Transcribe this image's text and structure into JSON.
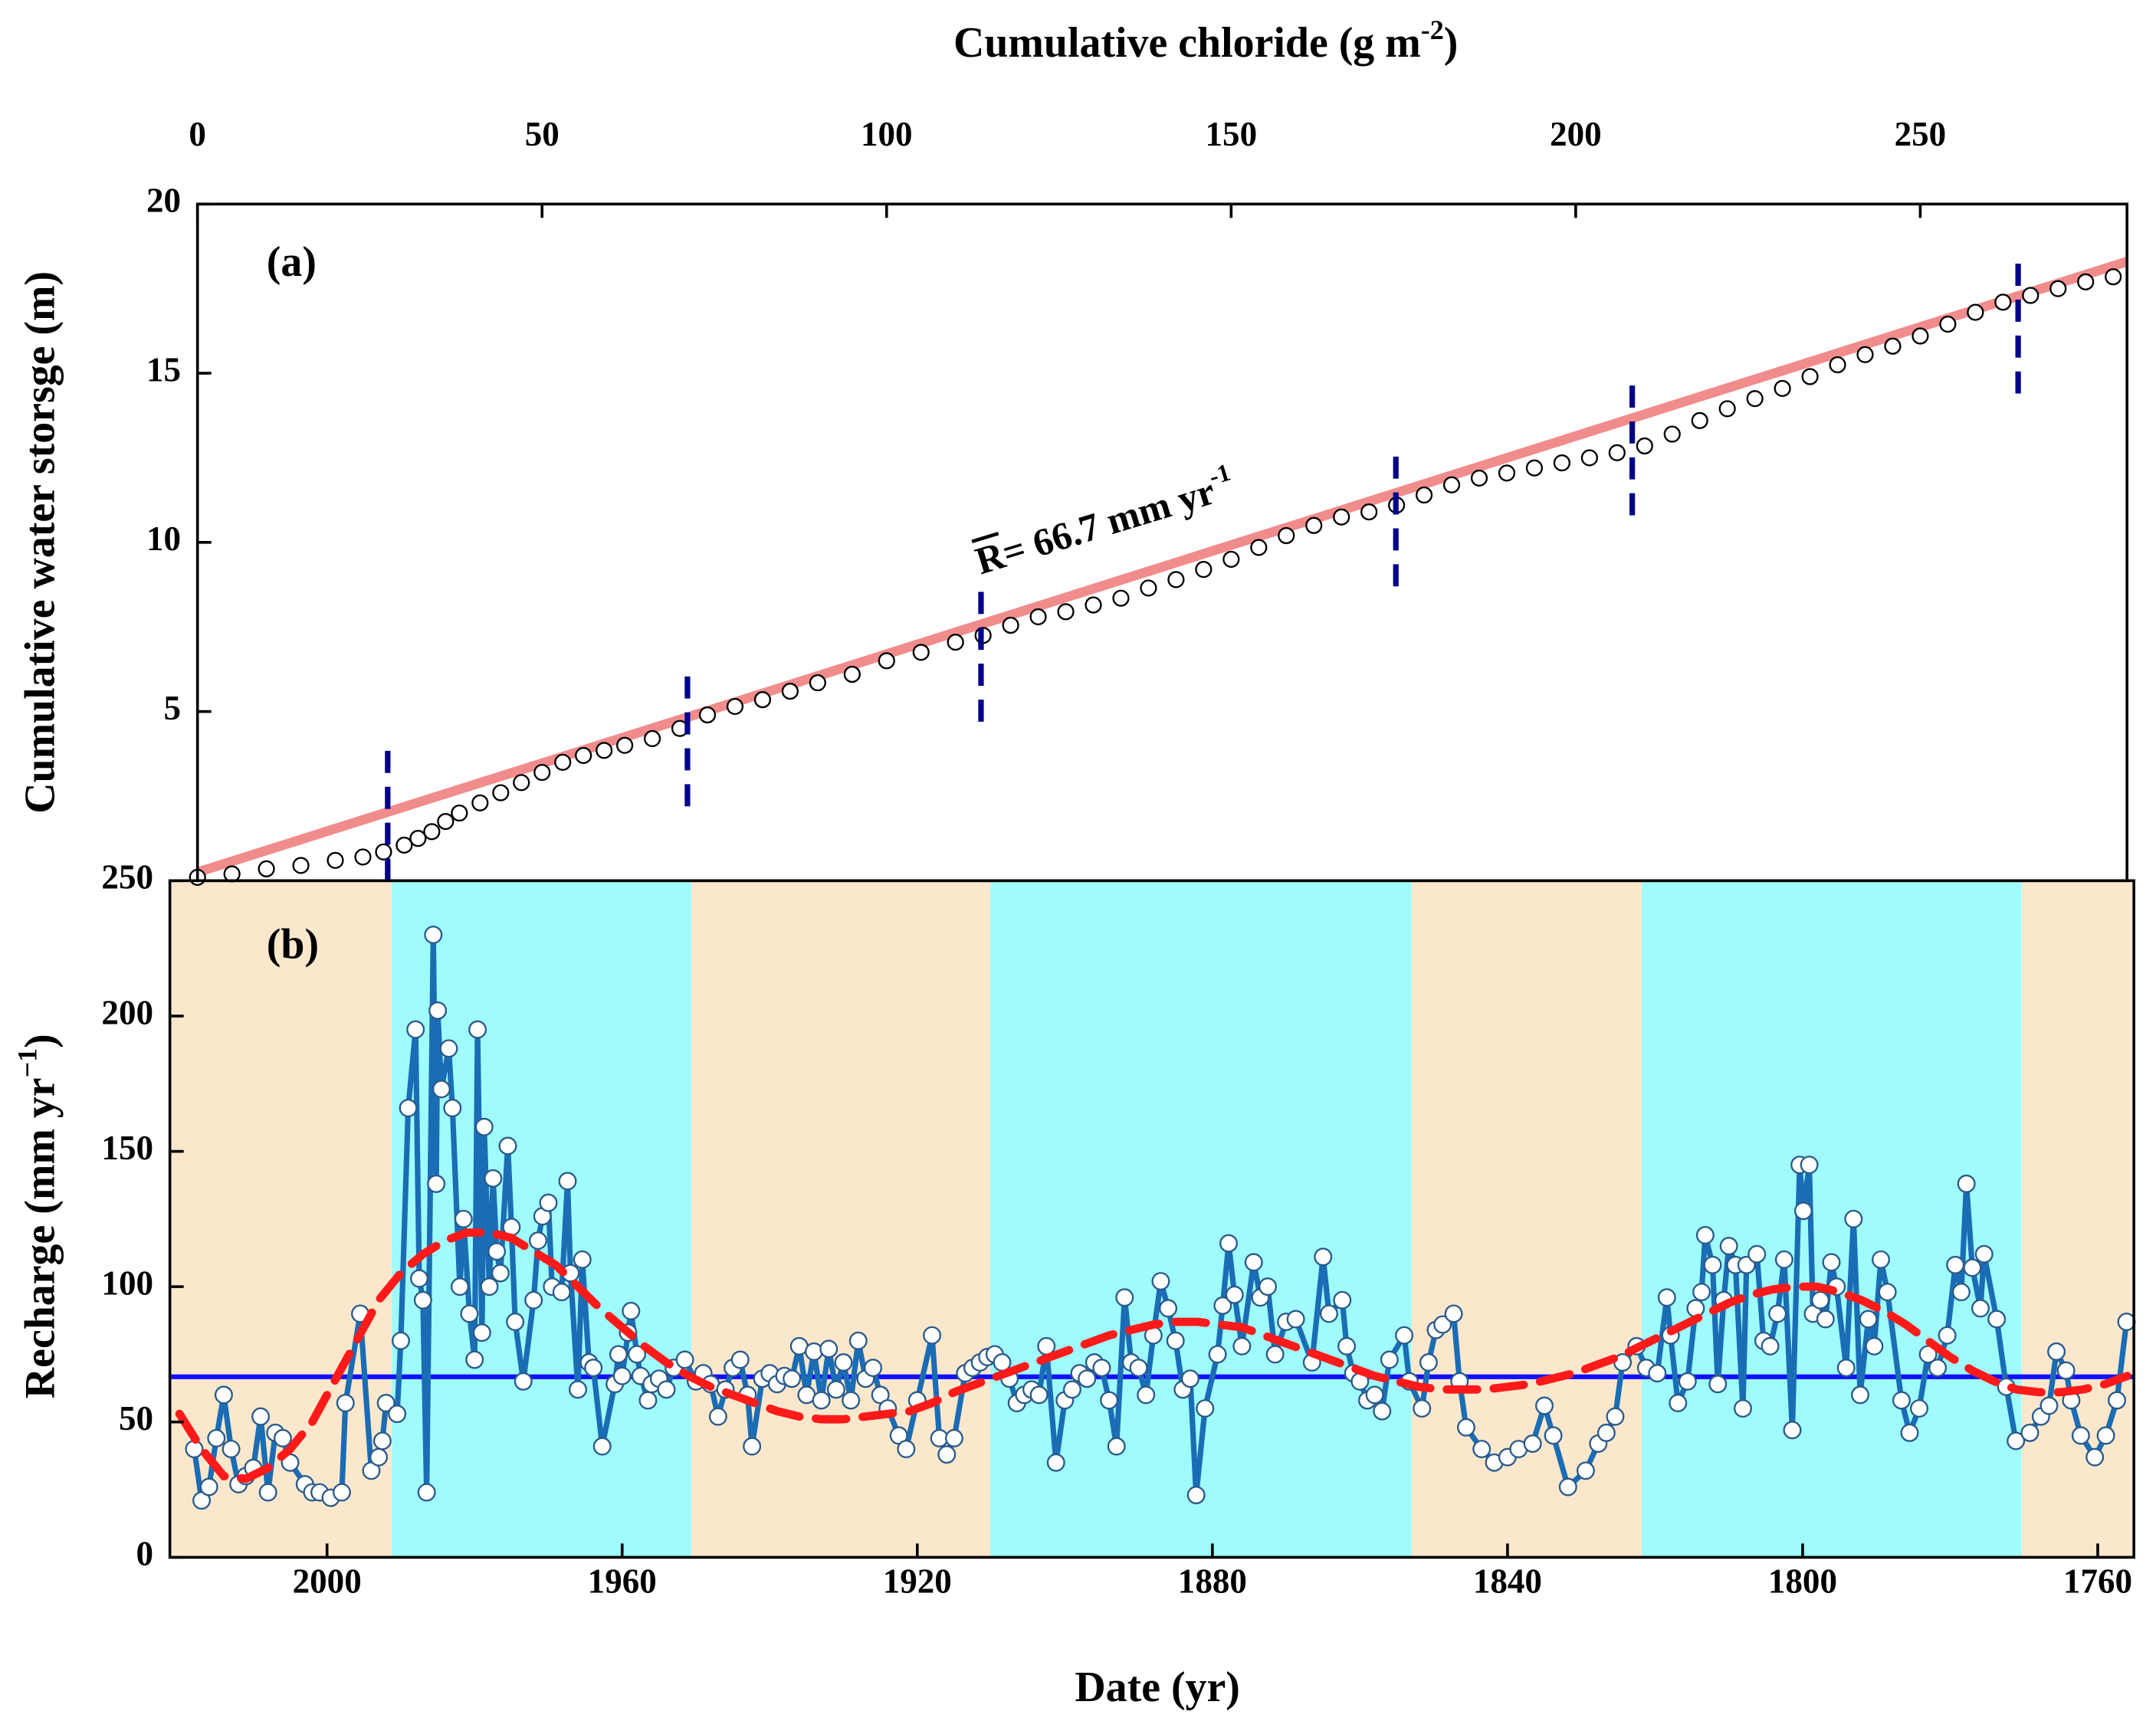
{
  "chart_data": [
    {
      "type": "scatter",
      "panel": "(a)",
      "xlabel": [
        "Cumulative chloride (g m",
        "-2",
        ")"
      ],
      "ylabel": "Cumulative water storsge (m)",
      "xlim": [
        0,
        280
      ],
      "xticks": [
        0,
        50,
        100,
        150,
        200,
        250
      ],
      "ylim": [
        0,
        20
      ],
      "yticks": [
        5,
        10,
        15,
        20
      ],
      "series": [
        {
          "color": "#000000",
          "marker": "circle",
          "x": [
            0,
            5,
            10,
            15,
            20,
            24,
            27,
            30,
            32,
            34,
            36,
            38,
            41,
            44,
            47,
            50,
            53,
            56,
            59,
            62,
            66,
            70,
            74,
            78,
            82,
            86,
            90,
            95,
            100,
            105,
            110,
            114,
            118,
            122,
            126,
            130,
            134,
            138,
            142,
            146,
            150,
            154,
            158,
            162,
            166,
            170,
            174,
            178,
            182,
            186,
            190,
            194,
            198,
            202,
            206,
            210,
            214,
            218,
            222,
            226,
            230,
            234,
            238,
            242,
            246,
            250,
            254,
            258,
            262,
            266,
            270,
            274,
            278
          ],
          "values": [
            0.1,
            0.2,
            0.35,
            0.45,
            0.6,
            0.7,
            0.85,
            1.05,
            1.25,
            1.45,
            1.75,
            2.0,
            2.3,
            2.6,
            2.9,
            3.2,
            3.5,
            3.7,
            3.85,
            4.0,
            4.2,
            4.5,
            4.9,
            5.15,
            5.35,
            5.6,
            5.85,
            6.1,
            6.5,
            6.75,
            7.05,
            7.25,
            7.55,
            7.8,
            7.95,
            8.15,
            8.35,
            8.65,
            8.9,
            9.2,
            9.5,
            9.85,
            10.2,
            10.5,
            10.75,
            10.9,
            11.1,
            11.4,
            11.7,
            11.9,
            12.05,
            12.2,
            12.35,
            12.5,
            12.65,
            12.85,
            13.2,
            13.6,
            13.95,
            14.25,
            14.55,
            14.9,
            15.25,
            15.55,
            15.8,
            16.1,
            16.45,
            16.8,
            17.1,
            17.3,
            17.5,
            17.7,
            17.85
          ]
        },
        {
          "color": "#f08080",
          "marker": "line",
          "x": [
            0,
            280
          ],
          "values": [
            0.25,
            18.3
          ]
        }
      ],
      "annotation": [
        "R",
        "= 66.7  mm yr",
        "-1"
      ],
      "markers_color": "#00008b",
      "markers": [
        {
          "x": 27.6,
          "y": [
            0,
            4.1
          ]
        },
        {
          "x": 71.1,
          "y": [
            2.2,
            6.3
          ]
        },
        {
          "x": 113.7,
          "y": [
            4.7,
            8.8
          ]
        },
        {
          "x": 173.9,
          "y": [
            8.7,
            12.8
          ]
        },
        {
          "x": 208.2,
          "y": [
            10.8,
            14.9
          ]
        },
        {
          "x": 264.2,
          "y": [
            14.4,
            18.6
          ]
        }
      ]
    },
    {
      "type": "line",
      "panel": "(b)",
      "xlabel": "Date (yr)",
      "ylabel": [
        "Recharge (mm yr",
        "−1",
        ")"
      ],
      "xlim": [
        2021.3,
        1755.1
      ],
      "xticks": [
        2000,
        1960,
        1920,
        1880,
        1840,
        1800,
        1760
      ],
      "ylim": [
        0,
        250
      ],
      "yticks": [
        0,
        50,
        100,
        150,
        200,
        250
      ],
      "color": "#1a6db5",
      "marker_fill": "#ffffff",
      "marker_stroke": "#2a5a8a",
      "periods": [
        {
          "start": 2021.3,
          "end": 1991.2,
          "color": "#fbe8cc"
        },
        {
          "start": 1991.2,
          "end": 1950.6,
          "color": "#a0fcfc"
        },
        {
          "start": 1950.6,
          "end": 1910.1,
          "color": "#fbe8cc"
        },
        {
          "start": 1910.1,
          "end": 1853,
          "color": "#a0fcfc"
        },
        {
          "start": 1853,
          "end": 1821.8,
          "color": "#fbe8cc"
        },
        {
          "start": 1821.8,
          "end": 1770.3,
          "color": "#a0fcfc"
        },
        {
          "start": 1770.3,
          "end": 1755.1,
          "color": "#fbe8cc"
        }
      ],
      "mean": 66.7,
      "mean_color": "#1010ff",
      "x": [
        2018,
        2017,
        2016,
        2015,
        2014,
        2013,
        2012,
        2011,
        2010,
        2009,
        2008,
        2007,
        2006,
        2005,
        2003,
        2002,
        2001,
        1999.5,
        1998,
        1997.5,
        1995.5,
        1994,
        1993,
        1992.5,
        1992,
        1990.5,
        1990,
        1989,
        1988,
        1987.5,
        1987,
        1986.5,
        1985.6,
        1985.2,
        1985,
        1984.5,
        1983.5,
        1983,
        1982,
        1981.5,
        1980.7,
        1980,
        1979.6,
        1979,
        1978.7,
        1978,
        1977.5,
        1977,
        1976.5,
        1975.5,
        1975,
        1974.5,
        1973.4,
        1972,
        1971.4,
        1970.8,
        1970,
        1969.5,
        1968.2,
        1967.4,
        1967,
        1966,
        1965.4,
        1964.5,
        1963.9,
        1962.7,
        1961,
        1960.5,
        1960,
        1959.2,
        1958.8,
        1958,
        1957.5,
        1956.5,
        1956,
        1955,
        1954,
        1953,
        1951.5,
        1950,
        1949,
        1948,
        1947,
        1946,
        1945,
        1944,
        1943,
        1942.4,
        1941,
        1940,
        1939,
        1938,
        1937,
        1936,
        1935,
        1934,
        1933,
        1932,
        1931,
        1930,
        1929,
        1928,
        1927,
        1926,
        1925,
        1924,
        1922.5,
        1921.5,
        1920,
        1918,
        1917,
        1916,
        1915,
        1913.5,
        1912.5,
        1911.5,
        1910.5,
        1909.5,
        1908.5,
        1907.5,
        1906.5,
        1905.5,
        1904.5,
        1903.5,
        1902.5,
        1901.2,
        1900,
        1899,
        1898,
        1897,
        1896,
        1895,
        1894,
        1893,
        1891.9,
        1891,
        1890,
        1889,
        1888,
        1887,
        1886,
        1885,
        1884,
        1883,
        1882.2,
        1881,
        1879.3,
        1878.6,
        1877.8,
        1877,
        1876,
        1874.4,
        1873.5,
        1872.5,
        1871.5,
        1870,
        1868.7,
        1866.5,
        1865,
        1864.2,
        1862.4,
        1861.8,
        1860.9,
        1860,
        1859,
        1858,
        1857,
        1856,
        1854,
        1853.3,
        1851.6,
        1850.7,
        1849.7,
        1848.8,
        1847.3,
        1846.5,
        1845.6,
        1843.5,
        1841.8,
        1840,
        1838.5,
        1836.6,
        1835,
        1833.8,
        1831.8,
        1829.4,
        1827.7,
        1826.6,
        1825.4,
        1824.4,
        1822.5,
        1821.2,
        1819.7,
        1818.4,
        1817.9,
        1816.9,
        1815.6,
        1814.5,
        1813.7,
        1813.2,
        1812.2,
        1811.5,
        1810.7,
        1810.0,
        1809.1,
        1808.1,
        1807.6,
        1806.2,
        1805.3,
        1804.4,
        1803.4,
        1802.5,
        1801.4,
        1800.4,
        1799.9,
        1799.1,
        1798.6,
        1797.6,
        1796.9,
        1796.1,
        1795.4,
        1794.1,
        1793.1,
        1792.2,
        1791.1,
        1790.3,
        1789.4,
        1788.5,
        1786.6,
        1785.5,
        1784.2,
        1783.0,
        1781.7,
        1780.4,
        1779.3,
        1778.5,
        1777.8,
        1777.0,
        1775.9,
        1775.4,
        1773.7,
        1772.4,
        1771.1,
        1769.2,
        1767.7,
        1766.6,
        1765.6,
        1764.3,
        1763.6,
        1762.3,
        1760.4,
        1758.9,
        1757.4,
        1756.1
      ],
      "values": [
        40,
        21,
        26,
        44,
        60,
        40,
        27,
        30,
        33,
        52,
        24,
        46,
        44,
        35,
        27,
        24,
        24,
        22,
        24,
        57,
        90,
        32,
        37,
        43,
        57,
        53,
        80,
        166,
        195,
        103,
        95,
        24,
        230,
        138,
        202,
        173,
        188,
        166,
        100,
        125,
        90,
        73,
        195,
        83,
        159,
        100,
        140,
        113,
        105,
        152,
        122,
        87,
        65,
        95,
        117,
        126,
        131,
        100,
        98,
        139,
        105,
        62,
        110,
        72,
        70,
        41,
        64,
        75,
        67,
        83,
        91,
        75,
        67,
        58,
        64,
        66,
        62,
        70,
        73,
        65,
        68,
        64,
        52,
        62,
        70,
        73,
        60,
        41,
        66,
        68,
        64,
        67,
        66,
        78,
        60,
        76,
        58,
        77,
        62,
        72,
        58,
        80,
        66,
        70,
        60,
        55,
        45,
        40,
        58,
        82,
        44,
        38,
        44,
        68,
        70,
        72,
        74,
        75,
        72,
        66,
        57,
        60,
        62,
        60,
        78,
        35,
        58,
        62,
        68,
        66,
        72,
        70,
        58,
        41,
        96,
        72,
        70,
        60,
        82,
        102,
        92,
        80,
        62,
        66,
        23,
        55,
        75,
        93,
        116,
        97,
        78,
        109,
        96,
        100,
        75,
        87,
        88,
        72,
        111,
        90,
        95,
        78,
        68,
        65,
        58,
        60,
        54,
        73,
        82,
        65,
        55,
        72,
        84,
        86,
        90,
        65,
        48,
        40,
        35,
        37,
        40,
        42,
        56,
        45,
        26,
        32,
        42,
        46,
        52,
        72,
        78,
        70,
        68,
        96,
        82,
        57,
        65,
        92,
        98,
        119,
        108,
        64,
        95,
        115,
        108,
        55,
        108,
        112,
        80,
        78,
        90,
        110,
        47,
        145,
        128,
        145,
        90,
        95,
        88,
        109,
        100,
        70,
        125,
        60,
        88,
        78,
        110,
        98,
        58,
        46,
        55,
        75,
        70,
        82,
        108,
        98,
        138,
        107,
        92,
        112,
        88,
        63,
        43,
        46,
        52,
        56,
        76,
        69,
        58,
        45,
        37,
        45,
        58,
        87
      ],
      "trend": {
        "color": "#ff1a1a",
        "x": [
          2020,
          2017,
          2014,
          2011,
          2008,
          2005,
          2002,
          1999,
          1996,
          1993,
          1990,
          1987,
          1984,
          1981,
          1978,
          1975,
          1972,
          1969,
          1966,
          1963,
          1960,
          1957,
          1954,
          1951,
          1948,
          1945,
          1942,
          1939,
          1936,
          1933,
          1930,
          1927,
          1924,
          1921,
          1918,
          1915,
          1912,
          1909,
          1906,
          1903,
          1900,
          1897,
          1894,
          1891,
          1888,
          1885,
          1882,
          1879,
          1876,
          1873,
          1870,
          1867,
          1864,
          1861,
          1858,
          1855,
          1852,
          1849,
          1846,
          1843,
          1840,
          1837,
          1834,
          1831,
          1828,
          1825,
          1822,
          1819,
          1816,
          1813,
          1810,
          1807,
          1804,
          1801,
          1798,
          1795,
          1792,
          1789,
          1786,
          1783,
          1780,
          1777,
          1774,
          1771,
          1768,
          1765,
          1762,
          1759,
          1756
        ],
        "values": [
          53,
          40,
          30,
          29,
          33,
          40,
          50,
          65,
          80,
          95,
          105,
          112,
          117,
          120,
          120,
          118,
          113,
          108,
          100,
          92,
          85,
          78,
          72,
          67,
          63,
          60,
          57,
          54,
          52,
          51,
          51,
          52,
          53,
          54,
          57,
          61,
          64,
          67,
          70,
          73,
          76,
          79,
          82,
          84,
          86,
          87,
          87,
          86,
          85,
          82,
          79,
          76,
          73,
          70,
          67,
          65,
          63,
          62,
          62,
          62,
          63,
          64,
          66,
          68,
          71,
          74,
          78,
          82,
          86,
          90,
          94,
          97,
          99,
          100,
          100,
          98,
          95,
          91,
          86,
          80,
          74,
          69,
          65,
          62,
          61,
          61,
          62,
          64,
          67
        ]
      }
    }
  ]
}
